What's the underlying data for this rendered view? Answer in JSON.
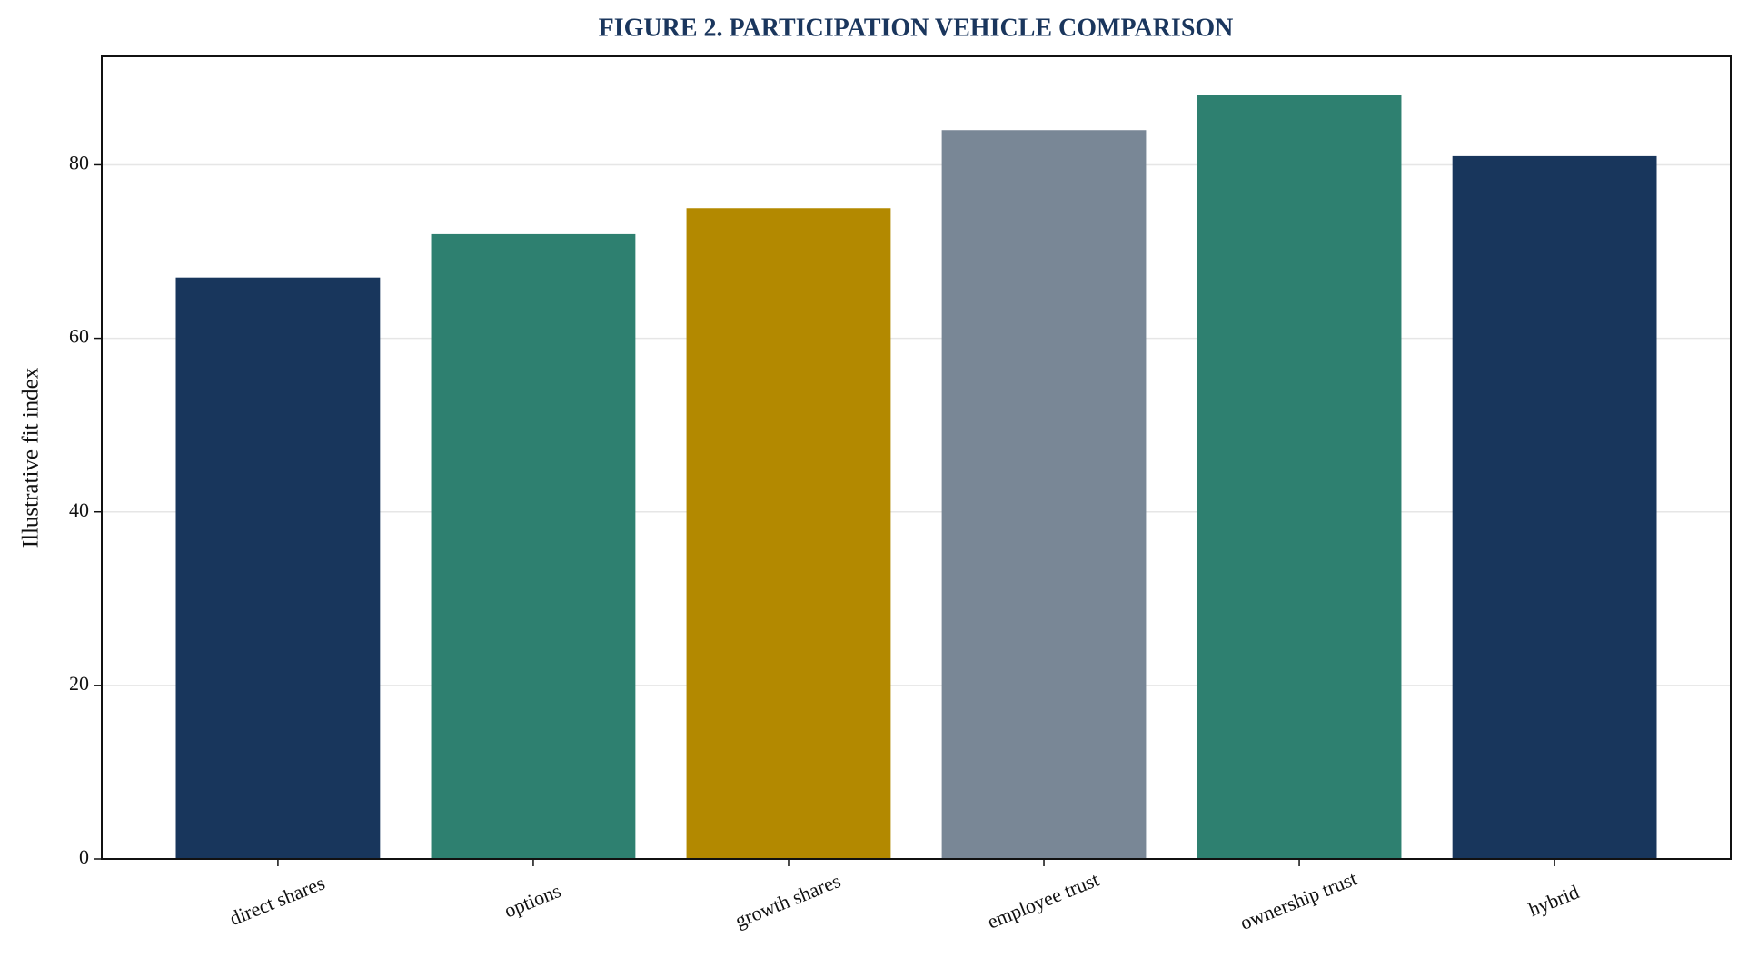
{
  "chart_data": {
    "type": "bar",
    "title": "FIGURE 2. PARTICIPATION VEHICLE COMPARISON",
    "y_label": "Illustrative fit index",
    "categories": [
      "direct shares",
      "options",
      "growth shares",
      "employee trust",
      "ownership trust",
      "hybrid"
    ],
    "values": [
      67,
      72,
      75,
      84,
      88,
      81
    ],
    "colors": [
      "#18365c",
      "#2e8070",
      "#b38900",
      "#798796",
      "#2e8070",
      "#18365c"
    ],
    "ylim": [
      0,
      92.5
    ],
    "yticks": [
      0,
      20,
      40,
      60,
      80
    ],
    "grid": true
  }
}
